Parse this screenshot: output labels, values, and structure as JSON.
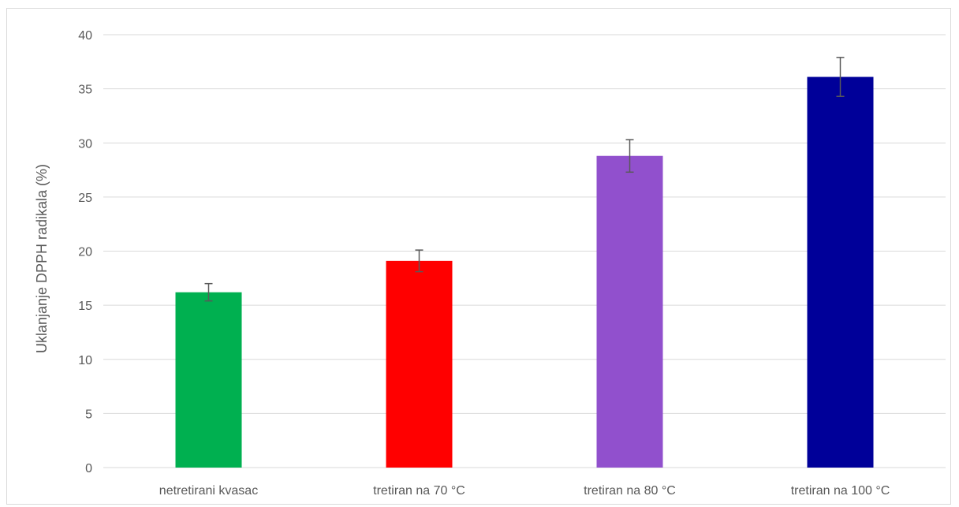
{
  "chart_data": {
    "type": "bar",
    "title": "",
    "xlabel": "",
    "ylabel": "Uklanjanje DPPH radikala (%)",
    "categories": [
      "netretirani kvasac",
      "tretiran na 70 °C",
      "tretiran na 80 °C",
      "tretiran na 100 °C"
    ],
    "values": [
      16.2,
      19.1,
      28.8,
      36.1
    ],
    "errors": [
      0.8,
      1.0,
      1.5,
      1.8
    ],
    "colors": [
      "#00b050",
      "#ff0000",
      "#9150cd",
      "#000099"
    ],
    "ylim": [
      0,
      40
    ],
    "yticks": [
      "0",
      "5",
      "10",
      "15",
      "20",
      "25",
      "30",
      "35",
      "40"
    ],
    "grid": true,
    "legend": "none"
  }
}
